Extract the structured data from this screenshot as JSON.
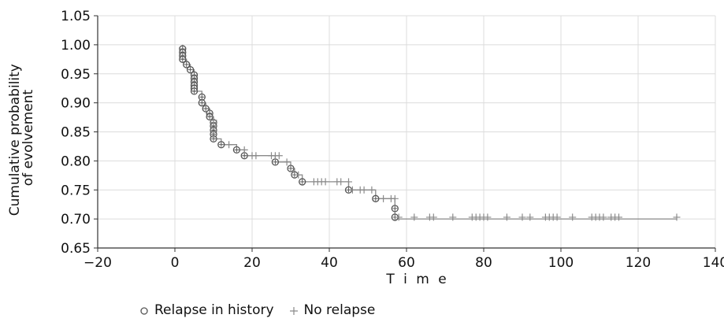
{
  "chart_data": {
    "type": "scatter",
    "title": "",
    "xlabel": "T i m e",
    "ylabel_lines": [
      "Cumulative probability",
      "of evolvement"
    ],
    "xlim": [
      -20,
      140
    ],
    "ylim": [
      0.65,
      1.05
    ],
    "x_ticks": [
      -20,
      0,
      20,
      40,
      60,
      80,
      100,
      120,
      140
    ],
    "x_tick_labels": [
      "−20",
      "0",
      "20",
      "40",
      "60",
      "80",
      "100",
      "120",
      "140"
    ],
    "y_ticks": [
      0.65,
      0.7,
      0.75,
      0.8,
      0.85,
      0.9,
      0.95,
      1.0,
      1.05
    ],
    "y_tick_labels": [
      "0.65",
      "0.70",
      "0.75",
      "0.80",
      "0.85",
      "0.90",
      "0.95",
      "1.00",
      "1.05"
    ],
    "grid": true,
    "legend_position": "bottom",
    "colors": {
      "line": "#8a8a8a",
      "marker": "#555555",
      "grid": "#dcdcdc",
      "axis": "#333333"
    },
    "step_curve": [
      [
        2,
        1.0
      ],
      [
        2,
        0.975
      ],
      [
        3,
        0.975
      ],
      [
        3,
        0.966
      ],
      [
        4,
        0.966
      ],
      [
        4,
        0.957
      ],
      [
        5,
        0.957
      ],
      [
        5,
        0.92
      ],
      [
        7,
        0.92
      ],
      [
        7,
        0.9
      ],
      [
        8,
        0.9
      ],
      [
        8,
        0.89
      ],
      [
        9,
        0.89
      ],
      [
        9,
        0.876
      ],
      [
        10,
        0.876
      ],
      [
        10,
        0.838
      ],
      [
        12,
        0.838
      ],
      [
        12,
        0.828
      ],
      [
        16,
        0.828
      ],
      [
        16,
        0.819
      ],
      [
        18,
        0.819
      ],
      [
        18,
        0.809
      ],
      [
        26,
        0.809
      ],
      [
        26,
        0.798
      ],
      [
        30,
        0.798
      ],
      [
        30,
        0.787
      ],
      [
        31,
        0.787
      ],
      [
        31,
        0.776
      ],
      [
        33,
        0.776
      ],
      [
        33,
        0.764
      ],
      [
        45,
        0.764
      ],
      [
        45,
        0.75
      ],
      [
        52,
        0.75
      ],
      [
        52,
        0.735
      ],
      [
        57,
        0.735
      ],
      [
        57,
        0.7
      ],
      [
        130,
        0.7
      ]
    ],
    "series": [
      {
        "name": "Relapse in history",
        "marker": "circle",
        "points": [
          [
            2,
            0.993
          ],
          [
            2,
            0.987
          ],
          [
            2,
            0.981
          ],
          [
            2,
            0.975
          ],
          [
            3,
            0.966
          ],
          [
            4,
            0.957
          ],
          [
            5,
            0.948
          ],
          [
            5,
            0.942
          ],
          [
            5,
            0.936
          ],
          [
            5,
            0.93
          ],
          [
            5,
            0.925
          ],
          [
            5,
            0.92
          ],
          [
            7,
            0.91
          ],
          [
            7,
            0.9
          ],
          [
            8,
            0.89
          ],
          [
            9,
            0.882
          ],
          [
            9,
            0.876
          ],
          [
            10,
            0.866
          ],
          [
            10,
            0.86
          ],
          [
            10,
            0.853
          ],
          [
            10,
            0.846
          ],
          [
            10,
            0.838
          ],
          [
            12,
            0.828
          ],
          [
            16,
            0.819
          ],
          [
            18,
            0.809
          ],
          [
            26,
            0.798
          ],
          [
            30,
            0.787
          ],
          [
            31,
            0.776
          ],
          [
            33,
            0.764
          ],
          [
            45,
            0.75
          ],
          [
            52,
            0.735
          ],
          [
            57,
            0.718
          ],
          [
            57,
            0.703
          ]
        ]
      },
      {
        "name": "No relapse",
        "marker": "plus",
        "points": [
          [
            10,
            0.87
          ],
          [
            14,
            0.828
          ],
          [
            18,
            0.819
          ],
          [
            20,
            0.809
          ],
          [
            21,
            0.809
          ],
          [
            25,
            0.809
          ],
          [
            26,
            0.809
          ],
          [
            27,
            0.809
          ],
          [
            29,
            0.798
          ],
          [
            32,
            0.776
          ],
          [
            36,
            0.764
          ],
          [
            37,
            0.764
          ],
          [
            38,
            0.764
          ],
          [
            39,
            0.764
          ],
          [
            42,
            0.764
          ],
          [
            43,
            0.764
          ],
          [
            45,
            0.764
          ],
          [
            46,
            0.75
          ],
          [
            48,
            0.75
          ],
          [
            49,
            0.75
          ],
          [
            51,
            0.75
          ],
          [
            54,
            0.735
          ],
          [
            56,
            0.735
          ],
          [
            57,
            0.735
          ],
          [
            58,
            0.703
          ],
          [
            62,
            0.703
          ],
          [
            66,
            0.703
          ],
          [
            67,
            0.703
          ],
          [
            72,
            0.703
          ],
          [
            77,
            0.703
          ],
          [
            78,
            0.703
          ],
          [
            79,
            0.703
          ],
          [
            80,
            0.703
          ],
          [
            81,
            0.703
          ],
          [
            86,
            0.703
          ],
          [
            90,
            0.703
          ],
          [
            92,
            0.703
          ],
          [
            96,
            0.703
          ],
          [
            97,
            0.703
          ],
          [
            98,
            0.703
          ],
          [
            99,
            0.703
          ],
          [
            103,
            0.703
          ],
          [
            108,
            0.703
          ],
          [
            109,
            0.703
          ],
          [
            110,
            0.703
          ],
          [
            111,
            0.703
          ],
          [
            113,
            0.703
          ],
          [
            114,
            0.703
          ],
          [
            115,
            0.703
          ],
          [
            130,
            0.703
          ]
        ]
      }
    ]
  },
  "legend": {
    "items": [
      {
        "symbol": "circle",
        "label": "Relapse in history"
      },
      {
        "symbol": "plus",
        "label": "No relapse"
      }
    ]
  }
}
